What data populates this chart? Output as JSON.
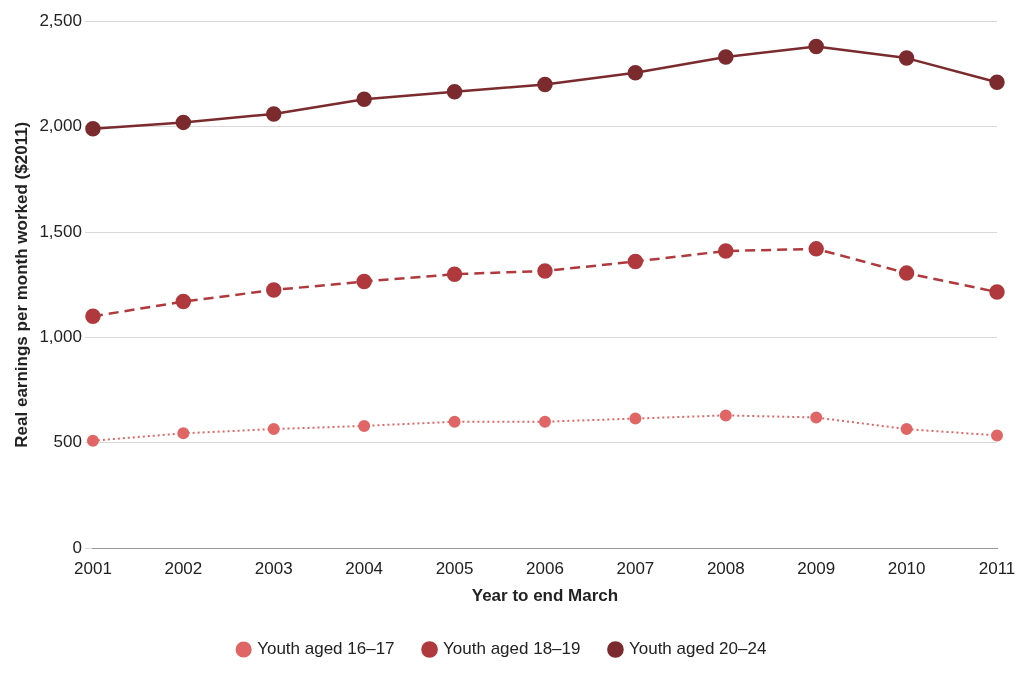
{
  "chart_data": {
    "type": "line",
    "xlabel": "Year to end March",
    "ylabel": "Real earnings per month worked ($2011)",
    "categories": [
      "2001",
      "2002",
      "2003",
      "2004",
      "2005",
      "2006",
      "2007",
      "2008",
      "2009",
      "2010",
      "2011"
    ],
    "series": [
      {
        "name": "Youth aged 16–17",
        "color": "#e06666",
        "line_style": "dotted",
        "values": [
          510,
          545,
          565,
          580,
          600,
          600,
          615,
          630,
          620,
          565,
          535
        ]
      },
      {
        "name": "Youth aged 18–19",
        "color": "#b0393d",
        "line_style": "dashed",
        "values": [
          1100,
          1170,
          1225,
          1265,
          1300,
          1315,
          1360,
          1410,
          1420,
          1305,
          1215
        ]
      },
      {
        "name": "Youth aged 20–24",
        "color": "#7b2b2e",
        "line_style": "solid",
        "values": [
          1990,
          2020,
          2060,
          2130,
          2165,
          2200,
          2255,
          2330,
          2380,
          2325,
          2210
        ]
      }
    ],
    "ylim": [
      0,
      2500
    ],
    "yticks": [
      0,
      {
        "value": 500,
        "label": "500"
      },
      {
        "value": 1000,
        "label": "1,000"
      },
      {
        "value": 1500,
        "label": "1,500"
      },
      {
        "value": 2000,
        "label": "2,000"
      },
      {
        "value": 2500,
        "label": "2,500"
      }
    ],
    "grid": "y",
    "legend": "bottom",
    "marker": "circle"
  }
}
